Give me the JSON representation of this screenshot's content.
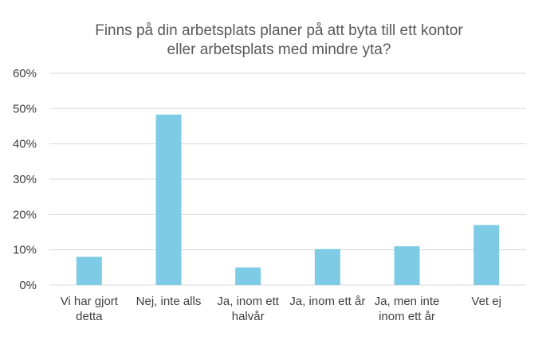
{
  "chart_data": {
    "type": "bar",
    "title_lines": [
      "Finns på din arbetsplats planer på att byta till ett kontor",
      "eller arbetsplats med mindre yta?"
    ],
    "categories": [
      [
        "Vi har gjort",
        "detta"
      ],
      [
        "Nej, inte alls"
      ],
      [
        "Ja, inom ett",
        "halvår"
      ],
      [
        "Ja, inom ett år"
      ],
      [
        "Ja, men inte",
        "inom ett år"
      ],
      [
        "Vet ej"
      ]
    ],
    "values": [
      8,
      48.3,
      5,
      10.2,
      11,
      17
    ],
    "ylim": [
      0,
      60
    ],
    "yticks": [
      0,
      10,
      20,
      30,
      40,
      50,
      60
    ],
    "ytick_labels": [
      "0%",
      "10%",
      "20%",
      "30%",
      "40%",
      "50%",
      "60%"
    ],
    "bar_color": "#7ecbe6",
    "gridline_color": "#d9d9d9",
    "grid": true,
    "xlabel": "",
    "ylabel": ""
  }
}
